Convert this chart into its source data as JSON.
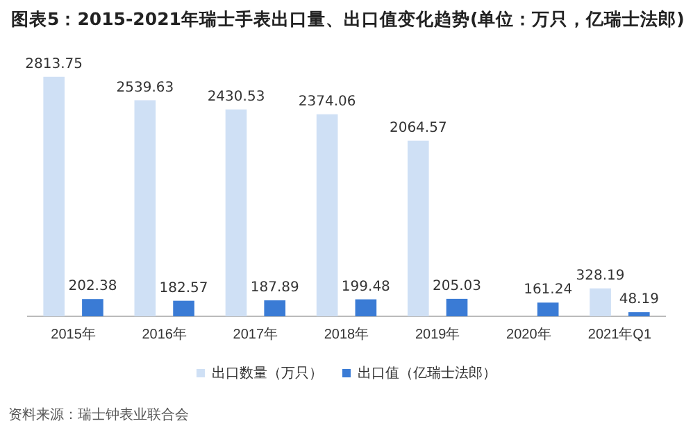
{
  "chart_data": {
    "type": "bar",
    "title": "图表5：2015-2021年瑞士手表出口量、出口值变化趋势(单位：万只，亿瑞士法郎)",
    "categories": [
      "2015年",
      "2016年",
      "2017年",
      "2018年",
      "2019年",
      "2020年",
      "2021年Q1"
    ],
    "series": [
      {
        "name": "出口数量（万只）",
        "color": "#cfe0f5",
        "values": [
          2813.75,
          2539.63,
          2430.53,
          2374.06,
          2064.57,
          null,
          328.19
        ]
      },
      {
        "name": "出口值（亿瑞士法郎）",
        "color": "#3a7bd5",
        "values": [
          202.38,
          182.57,
          187.89,
          199.48,
          205.03,
          161.24,
          48.19
        ]
      }
    ],
    "data_labels": true,
    "legend": "bottom",
    "grid": false,
    "tick_labels": "x",
    "annotations": [
      "资料来源：瑞士钟表业联合会"
    ]
  }
}
